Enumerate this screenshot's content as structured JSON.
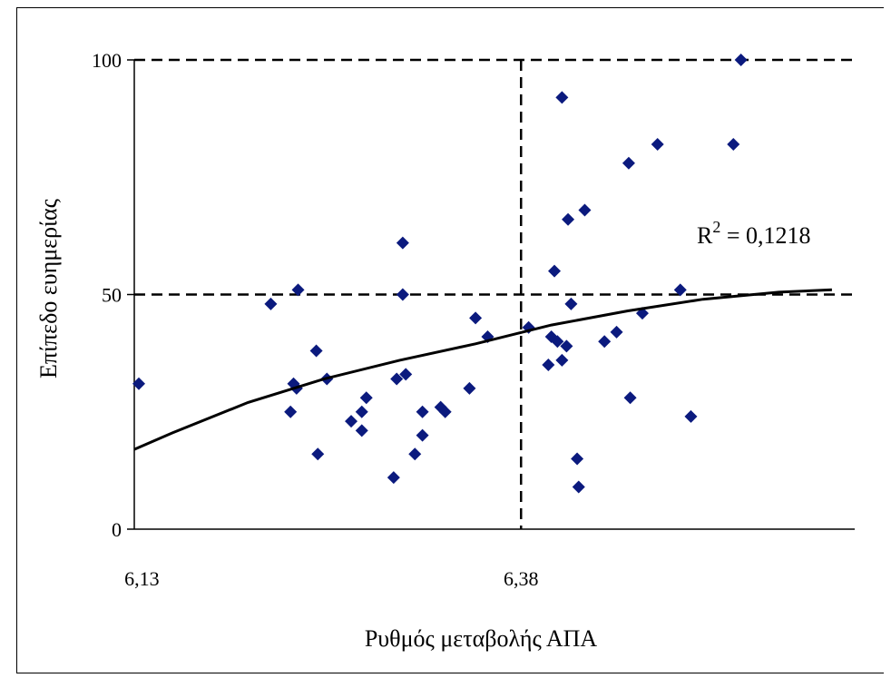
{
  "chart_data": {
    "type": "scatter",
    "xlabel": "Ρυθμός μεταβολής ΑΠΑ",
    "ylabel": "Επίπεδο ευημερίας",
    "x_ticks": [
      "6,13",
      "6,38"
    ],
    "y_ticks": [
      "0",
      "50",
      "100"
    ],
    "xlim": [
      6.125,
      6.6
    ],
    "ylim": [
      0,
      100
    ],
    "reference_lines": {
      "x": 6.38,
      "y": 50,
      "style": "dashed"
    },
    "annotation": {
      "base": "R",
      "sup": "2",
      "rest": " = 0,1218"
    },
    "grid": false,
    "legend": "none",
    "point_color": "#0b1a7e",
    "trendline": {
      "type": "polynomial",
      "x": [
        6.125,
        6.15,
        6.2,
        6.25,
        6.3,
        6.35,
        6.4,
        6.45,
        6.5,
        6.55,
        6.585
      ],
      "y": [
        17,
        20.5,
        27,
        32,
        36,
        39.5,
        43.5,
        46.5,
        49,
        50.5,
        51
      ]
    },
    "points": [
      {
        "x": 6.128,
        "y": 31
      },
      {
        "x": 6.215,
        "y": 48
      },
      {
        "x": 6.228,
        "y": 25
      },
      {
        "x": 6.23,
        "y": 31
      },
      {
        "x": 6.232,
        "y": 30
      },
      {
        "x": 6.233,
        "y": 51
      },
      {
        "x": 6.245,
        "y": 38
      },
      {
        "x": 6.246,
        "y": 16
      },
      {
        "x": 6.252,
        "y": 32
      },
      {
        "x": 6.268,
        "y": 23
      },
      {
        "x": 6.275,
        "y": 21
      },
      {
        "x": 6.275,
        "y": 25
      },
      {
        "x": 6.278,
        "y": 28
      },
      {
        "x": 6.296,
        "y": 11
      },
      {
        "x": 6.298,
        "y": 32
      },
      {
        "x": 6.302,
        "y": 61
      },
      {
        "x": 6.302,
        "y": 50
      },
      {
        "x": 6.304,
        "y": 33
      },
      {
        "x": 6.31,
        "y": 16
      },
      {
        "x": 6.315,
        "y": 25
      },
      {
        "x": 6.315,
        "y": 20
      },
      {
        "x": 6.327,
        "y": 26
      },
      {
        "x": 6.33,
        "y": 25
      },
      {
        "x": 6.346,
        "y": 30
      },
      {
        "x": 6.35,
        "y": 45
      },
      {
        "x": 6.358,
        "y": 41
      },
      {
        "x": 6.385,
        "y": 43
      },
      {
        "x": 6.398,
        "y": 35
      },
      {
        "x": 6.4,
        "y": 41
      },
      {
        "x": 6.402,
        "y": 55
      },
      {
        "x": 6.404,
        "y": 40
      },
      {
        "x": 6.407,
        "y": 92
      },
      {
        "x": 6.407,
        "y": 36
      },
      {
        "x": 6.41,
        "y": 39
      },
      {
        "x": 6.411,
        "y": 66
      },
      {
        "x": 6.413,
        "y": 48
      },
      {
        "x": 6.417,
        "y": 15
      },
      {
        "x": 6.418,
        "y": 9
      },
      {
        "x": 6.422,
        "y": 68
      },
      {
        "x": 6.435,
        "y": 40
      },
      {
        "x": 6.443,
        "y": 42
      },
      {
        "x": 6.451,
        "y": 78
      },
      {
        "x": 6.452,
        "y": 28
      },
      {
        "x": 6.46,
        "y": 46
      },
      {
        "x": 6.47,
        "y": 82
      },
      {
        "x": 6.485,
        "y": 51
      },
      {
        "x": 6.492,
        "y": 24
      },
      {
        "x": 6.52,
        "y": 82
      },
      {
        "x": 6.525,
        "y": 100
      }
    ]
  }
}
